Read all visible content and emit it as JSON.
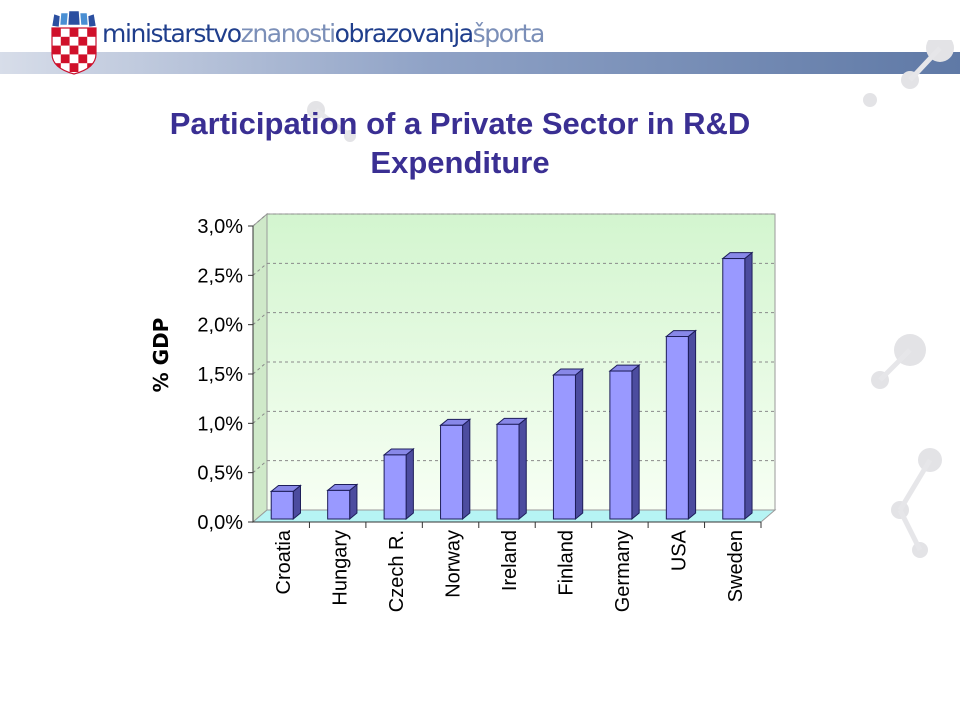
{
  "logo": {
    "parts": [
      "ministarstvo",
      "znanosti",
      "obrazovanja",
      "športa"
    ],
    "colors": [
      "#1f3e8c",
      "#7b8fb8"
    ]
  },
  "title": {
    "line1": "Participation of a Private Sector in R&D",
    "line2": "Expenditure",
    "color": "#3a2f93"
  },
  "chart_data": {
    "type": "bar",
    "style": "3d-columns",
    "title": "Participation of a Private Sector in R&D Expenditure",
    "ylabel": "% GDP",
    "xlabel": "",
    "categories": [
      "Croatia",
      "Hungary",
      "Czech R.",
      "Norway",
      "Ireland",
      "Finland",
      "Germany",
      "USA",
      "Sweden"
    ],
    "values": [
      0.31,
      0.32,
      0.68,
      0.98,
      0.99,
      1.49,
      1.53,
      1.88,
      2.67
    ],
    "ylim": [
      0,
      3.0
    ],
    "yticks": [
      "0,0%",
      "0,5%",
      "1,0%",
      "1,5%",
      "2,0%",
      "2,5%",
      "3,0%"
    ],
    "grid": true,
    "legend": "none",
    "colors": {
      "bar_front": "#9999ff",
      "bar_side": "#4c4c9f",
      "bar_top": "#8888e8",
      "wall_top": "#d3f5cf",
      "wall_bottom": "#f7fff4",
      "floor": "#b6f4f4"
    }
  }
}
